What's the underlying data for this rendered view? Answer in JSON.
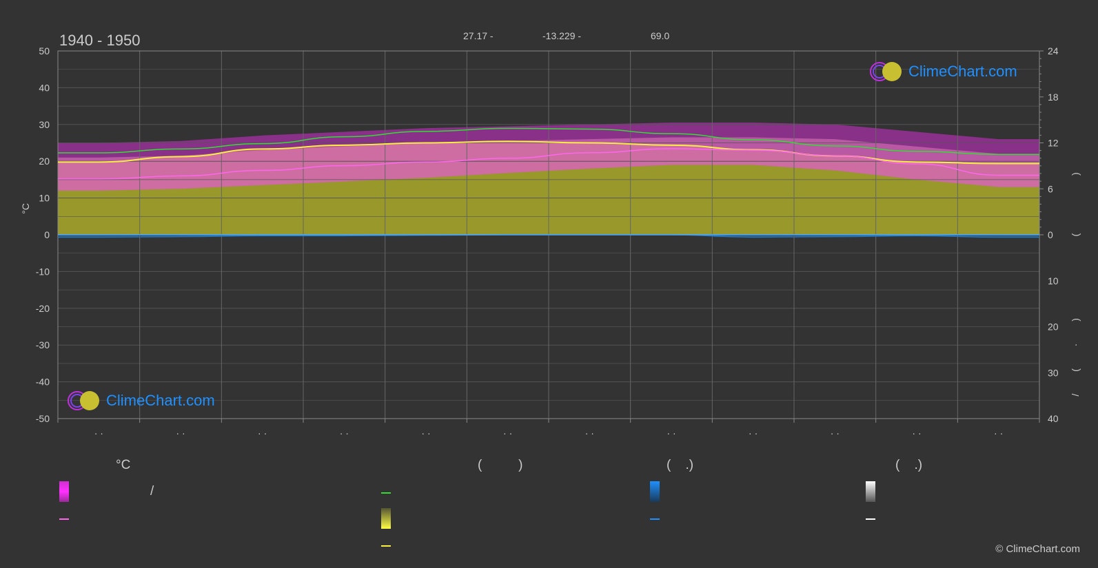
{
  "header": {
    "period": "1940 - 1950",
    "lat": "27.17 -",
    "lon": "-13.229 -",
    "elevation": "69.0"
  },
  "logo": {
    "text": "ClimeChart.com"
  },
  "copyright": "© ClimeChart.com",
  "legend": {
    "col1_title": "°C",
    "col2_title": "(          )",
    "col3_title": "(    .)",
    "col4_title": "(    .)",
    "slash": "/"
  },
  "colors": {
    "background": "#333333",
    "temp_range": "#d02fd0",
    "sunshine": "#aaaa2a",
    "daylight": "#33dd33",
    "sunshine_line": "#ffee44",
    "mean_temp": "#ff66ee",
    "precip": "#1e7ed0",
    "zero_line": "#4aa8ff",
    "snow": "#ffffff"
  },
  "chart_data": {
    "type": "area",
    "left_axis": {
      "label": "°C",
      "ticks": [
        "50",
        "40",
        "30",
        "20",
        "10",
        "0",
        "-10",
        "-20",
        "-30",
        "-40",
        "-50"
      ],
      "ylim": [
        -50,
        50
      ]
    },
    "right_axis_top": {
      "ticks": [
        "24",
        "18",
        "12",
        "6",
        "0"
      ],
      "ylim": [
        0,
        24
      ],
      "unit_marks": "( )"
    },
    "right_axis_bottom": {
      "ticks": [
        "0",
        "10",
        "20",
        "30",
        "40"
      ],
      "ylim": [
        0,
        40
      ],
      "unit_marks": "/ ( · )"
    },
    "x_labels": [
      "· ·",
      "· ·",
      "· ·",
      "· ·",
      "· ·",
      "· ·",
      "· ·",
      "· ·",
      "· ·",
      "· ·",
      "· ·",
      "· ·"
    ],
    "months_index": [
      0,
      1,
      2,
      3,
      4,
      5,
      6,
      7,
      8,
      9,
      10,
      11
    ],
    "series": [
      {
        "key": "daylight_hours",
        "values": [
          10.7,
          11.2,
          11.9,
          12.8,
          13.5,
          13.9,
          13.8,
          13.2,
          12.4,
          11.6,
          10.9,
          10.5
        ]
      },
      {
        "key": "sunshine_hours",
        "values": [
          9.5,
          10.2,
          11.2,
          11.7,
          12.0,
          12.2,
          12.0,
          11.7,
          11.1,
          10.3,
          9.5,
          9.3
        ]
      },
      {
        "key": "max_temp_mean",
        "values": [
          21.0,
          21.5,
          23.0,
          24.0,
          25.0,
          25.5,
          26.0,
          26.5,
          26.5,
          26.0,
          24.0,
          22.0
        ]
      },
      {
        "key": "mean_temp",
        "values": [
          15.2,
          16.0,
          17.5,
          18.8,
          19.8,
          20.8,
          22.3,
          23.4,
          23.0,
          21.5,
          19.3,
          16.2
        ]
      },
      {
        "key": "min_temp_mean",
        "values": [
          12.0,
          12.5,
          13.5,
          14.5,
          15.5,
          16.8,
          18.0,
          19.0,
          19.0,
          17.5,
          15.0,
          13.0
        ]
      },
      {
        "key": "precip_daily_mm",
        "values": [
          0.5,
          0.4,
          0.2,
          0.2,
          0.1,
          0.0,
          0.0,
          0.0,
          0.5,
          0.4,
          0.2,
          0.5
        ]
      }
    ]
  }
}
